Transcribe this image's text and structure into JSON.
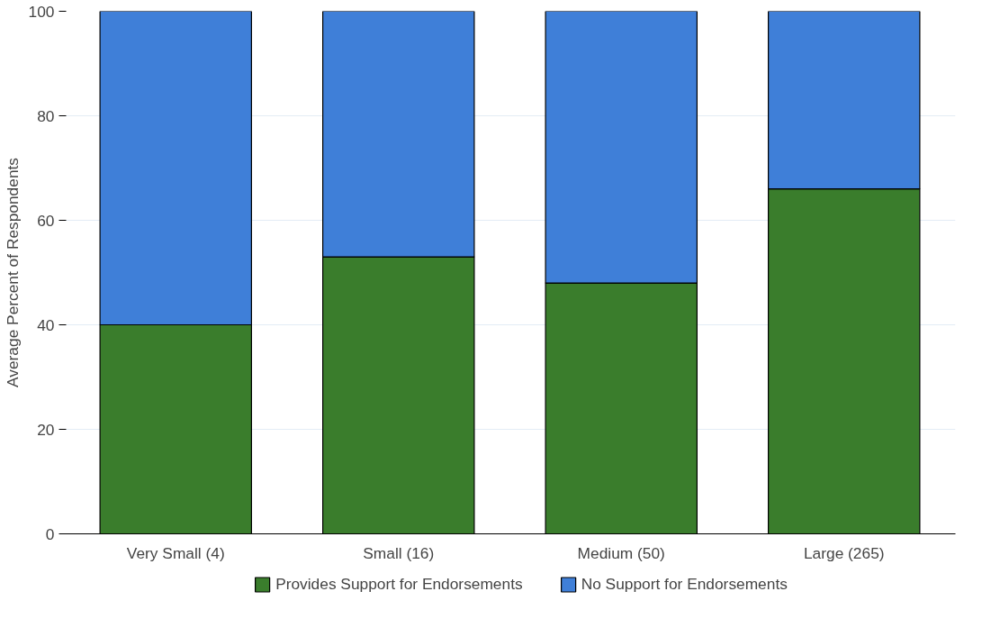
{
  "chart_data": {
    "type": "bar",
    "stacked": true,
    "ylabel": "Average Percent of Respondents",
    "categories": [
      "Very Small (4)",
      "Small (16)",
      "Medium (50)",
      "Large (265)"
    ],
    "series": [
      {
        "name": "Provides Support for Endorsements",
        "color": "#3a7d2c",
        "values": [
          40,
          53,
          48,
          66
        ]
      },
      {
        "name": "No Support for Endorsements",
        "color": "#3f7fd8",
        "values": [
          60,
          47,
          52,
          34
        ]
      }
    ],
    "ylim": [
      0,
      100
    ],
    "yticks": [
      0,
      20,
      40,
      60,
      80,
      100
    ],
    "grid": "y",
    "legend": "bottom"
  }
}
